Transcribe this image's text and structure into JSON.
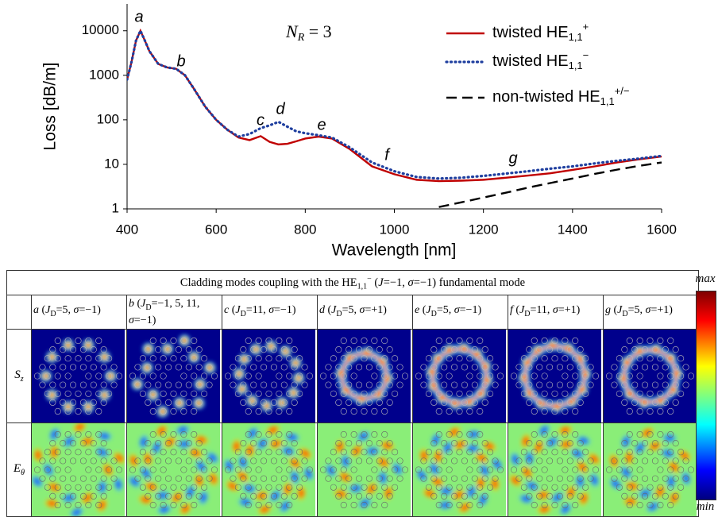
{
  "chart_data": {
    "type": "line",
    "log_y": true,
    "legend": "upper right",
    "xlabel": "Wavelength [nm]",
    "ylabel": "Loss [dB/m]",
    "nr_label": {
      "text": "N",
      "sub": "R",
      "tail": " = 3"
    },
    "annotations": [
      "a",
      "b",
      "c",
      "d",
      "e",
      "f",
      "g"
    ],
    "xlim": [
      400,
      1600
    ],
    "xticks": [
      400,
      600,
      800,
      1000,
      1200,
      1400,
      1600
    ],
    "ylim": [
      1,
      40000
    ],
    "yticks": [
      1,
      10,
      100,
      1000,
      10000
    ],
    "x": [
      400,
      410,
      420,
      430,
      440,
      450,
      470,
      490,
      510,
      530,
      550,
      575,
      600,
      625,
      650,
      675,
      700,
      720,
      740,
      760,
      780,
      800,
      830,
      860,
      900,
      950,
      1000,
      1050,
      1100,
      1150,
      1200,
      1250,
      1300,
      1350,
      1400,
      1450,
      1500,
      1550,
      1600
    ],
    "series": [
      {
        "name": "twisted HE",
        "name_sub": "1,1",
        "name_sup": "+",
        "color": "#c00000",
        "dash": "solid",
        "values": [
          800,
          2000,
          6000,
          10000,
          6000,
          3500,
          1800,
          1500,
          1400,
          1000,
          500,
          200,
          100,
          60,
          40,
          35,
          43,
          32,
          28,
          29,
          33,
          38,
          42,
          38,
          22,
          9,
          6,
          4.5,
          4.2,
          4.3,
          4.5,
          5,
          5.6,
          6.3,
          7.5,
          9,
          11,
          13,
          15
        ]
      },
      {
        "name": "twisted HE",
        "name_sub": "1,1",
        "name_sup": "−",
        "color": "#1f3f9f",
        "dash": "dotted",
        "values": [
          800,
          2000,
          6000,
          10000,
          6000,
          3500,
          1800,
          1500,
          1400,
          1000,
          500,
          200,
          100,
          60,
          42,
          48,
          65,
          75,
          90,
          70,
          55,
          50,
          45,
          40,
          24,
          11,
          7,
          5.2,
          4.8,
          5,
          5.5,
          6.2,
          7,
          8,
          9,
          10.5,
          12,
          13.5,
          15.5
        ]
      },
      {
        "name": "non-twisted HE",
        "name_sub": "1,1",
        "name_sup": "+/−",
        "color": "#000000",
        "dash": "dashed",
        "values": [
          null,
          null,
          null,
          null,
          null,
          null,
          null,
          null,
          null,
          null,
          null,
          null,
          null,
          null,
          null,
          null,
          null,
          null,
          null,
          null,
          null,
          null,
          null,
          null,
          null,
          null,
          null,
          null,
          1.1,
          1.4,
          1.8,
          2.3,
          3,
          3.8,
          4.8,
          6.1,
          7.6,
          9.3,
          11
        ]
      }
    ]
  },
  "table": {
    "title": [
      {
        "text": "Cladding modes coupling with the HE",
        "style": "n"
      },
      {
        "text": "1,1",
        "style": "sub"
      },
      {
        "text": "−",
        "style": "sup"
      },
      {
        "text": " (",
        "style": "n"
      },
      {
        "text": "J",
        "style": "i"
      },
      {
        "text": "=−1, ",
        "style": "n"
      },
      {
        "text": "σ",
        "style": "i"
      },
      {
        "text": "=−1) fundamental mode",
        "style": "n"
      }
    ],
    "columns": [
      [
        {
          "text": "a",
          "style": "i"
        },
        {
          "text": " (",
          "style": "n"
        },
        {
          "text": "J",
          "style": "i"
        },
        {
          "text": "D",
          "style": "sub"
        },
        {
          "text": "=5, ",
          "style": "n"
        },
        {
          "text": "σ",
          "style": "i"
        },
        {
          "text": "=−1)",
          "style": "n"
        }
      ],
      [
        {
          "text": "b",
          "style": "i"
        },
        {
          "text": " (",
          "style": "n"
        },
        {
          "text": "J",
          "style": "i"
        },
        {
          "text": "D",
          "style": "sub"
        },
        {
          "text": "=−1, 5, 11, ",
          "style": "n"
        },
        {
          "text": "σ",
          "style": "i"
        },
        {
          "text": "=−1)",
          "style": "n"
        }
      ],
      [
        {
          "text": "c",
          "style": "i"
        },
        {
          "text": " (",
          "style": "n"
        },
        {
          "text": "J",
          "style": "i"
        },
        {
          "text": "D",
          "style": "sub"
        },
        {
          "text": "=11, ",
          "style": "n"
        },
        {
          "text": "σ",
          "style": "i"
        },
        {
          "text": "=−1)",
          "style": "n"
        }
      ],
      [
        {
          "text": "d",
          "style": "i"
        },
        {
          "text": " (",
          "style": "n"
        },
        {
          "text": "J",
          "style": "i"
        },
        {
          "text": "D",
          "style": "sub"
        },
        {
          "text": "=5, ",
          "style": "n"
        },
        {
          "text": "σ",
          "style": "i"
        },
        {
          "text": "=+1)",
          "style": "n"
        }
      ],
      [
        {
          "text": "e",
          "style": "i"
        },
        {
          "text": " (",
          "style": "n"
        },
        {
          "text": "J",
          "style": "i"
        },
        {
          "text": "D",
          "style": "sub"
        },
        {
          "text": "=5, ",
          "style": "n"
        },
        {
          "text": "σ",
          "style": "i"
        },
        {
          "text": "=−1)",
          "style": "n"
        }
      ],
      [
        {
          "text": "f",
          "style": "i"
        },
        {
          "text": " (",
          "style": "n"
        },
        {
          "text": "J",
          "style": "i"
        },
        {
          "text": "D",
          "style": "sub"
        },
        {
          "text": "=11, ",
          "style": "n"
        },
        {
          "text": "σ",
          "style": "i"
        },
        {
          "text": "=+1)",
          "style": "n"
        }
      ],
      [
        {
          "text": "g",
          "style": "i"
        },
        {
          "text": " (",
          "style": "n"
        },
        {
          "text": "J",
          "style": "i"
        },
        {
          "text": "D",
          "style": "sub"
        },
        {
          "text": "=5, ",
          "style": "n"
        },
        {
          "text": "σ",
          "style": "i"
        },
        {
          "text": "=+1)",
          "style": "n"
        }
      ]
    ],
    "rows": [
      [
        {
          "text": "S",
          "style": "i"
        },
        {
          "text": "z",
          "style": "isub"
        }
      ],
      [
        {
          "text": "E",
          "style": "i"
        },
        {
          "text": "θ",
          "style": "isub"
        }
      ]
    ],
    "colorbar": {
      "max": "max",
      "min": "min"
    }
  }
}
